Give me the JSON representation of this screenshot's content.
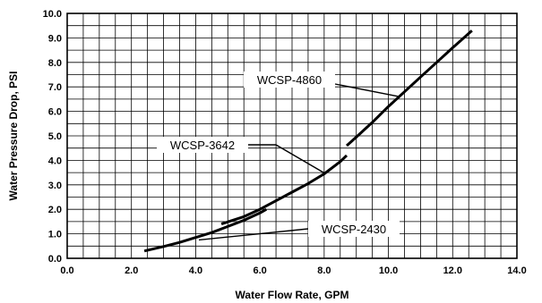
{
  "chart_data": {
    "type": "line",
    "xlabel": "Water Flow Rate, GPM",
    "ylabel": "Water Pressure Drop, PSI",
    "xlim": [
      0,
      14
    ],
    "ylim": [
      0,
      10
    ],
    "x_ticks": [
      0,
      2,
      4,
      6,
      8,
      10,
      12,
      14
    ],
    "y_ticks": [
      0,
      1,
      2,
      3,
      4,
      5,
      6,
      7,
      8,
      9,
      10
    ],
    "x_tick_labels": [
      "0.0",
      "2.0",
      "4.0",
      "6.0",
      "8.0",
      "10.0",
      "12.0",
      "14.0"
    ],
    "y_tick_labels": [
      "0.0",
      "1.0",
      "2.0",
      "3.0",
      "4.0",
      "5.0",
      "6.0",
      "7.0",
      "8.0",
      "9.0",
      "10.0"
    ],
    "x_minor_step": 0.5,
    "y_minor_step": 0.5,
    "grid": true,
    "legend": "none",
    "series": [
      {
        "name": "WCSP-2430",
        "x": [
          2.4,
          3.0,
          3.5,
          4.0,
          4.5,
          5.0,
          5.5,
          6.0,
          6.2
        ],
        "y": [
          0.3,
          0.48,
          0.65,
          0.85,
          1.05,
          1.3,
          1.55,
          1.85,
          2.0
        ]
      },
      {
        "name": "WCSP-3642",
        "x": [
          4.8,
          5.5,
          6.0,
          6.5,
          7.0,
          7.5,
          8.0,
          8.5,
          8.7
        ],
        "y": [
          1.4,
          1.7,
          2.0,
          2.35,
          2.7,
          3.05,
          3.45,
          3.95,
          4.2
        ]
      },
      {
        "name": "WCSP-4860",
        "x": [
          8.7,
          9.0,
          9.5,
          10.0,
          10.5,
          11.0,
          11.5,
          12.0,
          12.6
        ],
        "y": [
          4.6,
          4.95,
          5.55,
          6.2,
          6.8,
          7.4,
          8.0,
          8.6,
          9.3
        ]
      }
    ],
    "annotations": [
      {
        "text": "WCSP-4860",
        "series": "WCSP-4860"
      },
      {
        "text": "WCSP-3642",
        "series": "WCSP-3642"
      },
      {
        "text": "WCSP-2430",
        "series": "WCSP-2430"
      }
    ]
  }
}
